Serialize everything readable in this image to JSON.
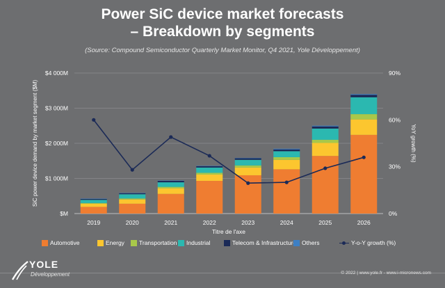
{
  "header": {
    "title_line1": "Power SiC device market forecasts",
    "title_line2": "– Breakdown by segments",
    "subtitle": "(Source: Compound Semiconductor Quarterly Market Monitor, Q4 2021, Yole Développement)"
  },
  "footer": {
    "logo_word": "YOLE",
    "logo_sub": "Développement",
    "copyright": "© 2022 | www.yole.fr - www.i-micronews.com"
  },
  "colors": {
    "background": "#6d6e70",
    "Automotive": "#ef7d31",
    "Energy": "#fcc62f",
    "Transportation": "#a8c84a",
    "Industrial": "#2bb8b0",
    "Telecom & Infrastructure": "#1b2a57",
    "Others": "#3d7fc4",
    "growth_line": "#1b2a57",
    "grid": "#8c8d8f"
  },
  "chart_data": {
    "type": "bar",
    "stacked": true,
    "categories": [
      "2019",
      "2020",
      "2021",
      "2022",
      "2023",
      "2024",
      "2025",
      "2026"
    ],
    "xlabel": "Titre de l'axe",
    "ylabel": "SiC power device demand by market segment ($M)",
    "y2label": "YoY growth (%)",
    "ylim": [
      0,
      4000
    ],
    "y_ticks": [
      "$M",
      "$1 000M",
      "$2 000M",
      "$3 000M",
      "$4 000M"
    ],
    "y2lim": [
      0,
      90
    ],
    "y2_ticks": [
      "0%",
      "30%",
      "60%",
      "90%"
    ],
    "grid": true,
    "legend_position": "bottom",
    "series": [
      {
        "name": "Automotive",
        "values": [
          190,
          280,
          560,
          930,
          1090,
          1260,
          1640,
          2240
        ]
      },
      {
        "name": "Energy",
        "values": [
          90,
          120,
          160,
          180,
          220,
          270,
          370,
          440
        ]
      },
      {
        "name": "Transportation",
        "values": [
          20,
          30,
          40,
          50,
          60,
          75,
          90,
          150
        ]
      },
      {
        "name": "Industrial",
        "values": [
          90,
          120,
          130,
          150,
          160,
          170,
          320,
          480
        ]
      },
      {
        "name": "Telecom & Infrastructure",
        "values": [
          25,
          30,
          40,
          40,
          45,
          50,
          60,
          70
        ]
      },
      {
        "name": "Others",
        "values": [
          10,
          10,
          10,
          10,
          10,
          20,
          20,
          20
        ]
      }
    ],
    "line_series": {
      "name": "Y-o-Y growth (%)",
      "axis": "right",
      "values": [
        60,
        28,
        49,
        37,
        19.5,
        20,
        29,
        36
      ]
    }
  }
}
